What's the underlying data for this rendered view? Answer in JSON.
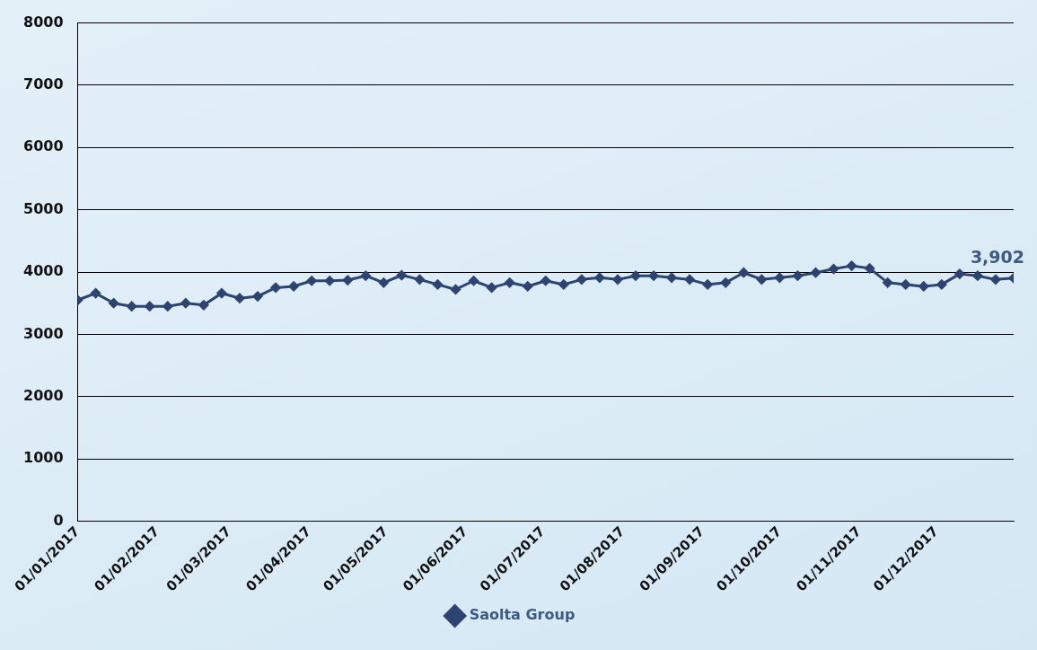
{
  "chart_data": {
    "type": "line",
    "x": [
      "2017-01-01",
      "2017-01-08",
      "2017-01-15",
      "2017-01-22",
      "2017-01-29",
      "2017-02-05",
      "2017-02-12",
      "2017-02-19",
      "2017-02-26",
      "2017-03-05",
      "2017-03-12",
      "2017-03-19",
      "2017-03-26",
      "2017-04-02",
      "2017-04-09",
      "2017-04-16",
      "2017-04-23",
      "2017-04-30",
      "2017-05-07",
      "2017-05-14",
      "2017-05-21",
      "2017-05-28",
      "2017-06-04",
      "2017-06-11",
      "2017-06-18",
      "2017-06-25",
      "2017-07-02",
      "2017-07-09",
      "2017-07-16",
      "2017-07-23",
      "2017-07-30",
      "2017-08-06",
      "2017-08-13",
      "2017-08-20",
      "2017-08-27",
      "2017-09-03",
      "2017-09-10",
      "2017-09-17",
      "2017-09-24",
      "2017-10-01",
      "2017-10-08",
      "2017-10-15",
      "2017-10-22",
      "2017-10-29",
      "2017-11-05",
      "2017-11-12",
      "2017-11-19",
      "2017-11-26",
      "2017-12-03",
      "2017-12-10",
      "2017-12-17",
      "2017-12-24",
      "2017-12-31"
    ],
    "series": [
      {
        "name": "Saolta Group",
        "color": "#2e4470",
        "values": [
          3550,
          3660,
          3500,
          3450,
          3450,
          3450,
          3500,
          3470,
          3660,
          3580,
          3610,
          3750,
          3770,
          3860,
          3860,
          3870,
          3940,
          3830,
          3950,
          3880,
          3800,
          3720,
          3860,
          3750,
          3830,
          3770,
          3860,
          3800,
          3880,
          3910,
          3880,
          3940,
          3940,
          3910,
          3880,
          3800,
          3830,
          3990,
          3880,
          3910,
          3940,
          3990,
          4050,
          4100,
          4060,
          3830,
          3800,
          3770,
          3800,
          3970,
          3940,
          3880,
          3902
        ],
        "value_labels": [
          null,
          null,
          null,
          null,
          null,
          null,
          null,
          null,
          null,
          null,
          null,
          null,
          null,
          null,
          null,
          null,
          null,
          null,
          null,
          null,
          null,
          null,
          null,
          null,
          null,
          null,
          null,
          null,
          null,
          null,
          null,
          null,
          null,
          null,
          null,
          null,
          null,
          null,
          null,
          null,
          null,
          null,
          null,
          null,
          null,
          null,
          null,
          null,
          null,
          null,
          null,
          null,
          "3,902"
        ]
      }
    ],
    "xlim": [
      "2017-01-01",
      "2017-12-31"
    ],
    "xticks": [
      {
        "value": "2017-01-01",
        "label": "01/01/2017"
      },
      {
        "value": "2017-02-01",
        "label": "01/02/2017"
      },
      {
        "value": "2017-03-01",
        "label": "01/03/2017"
      },
      {
        "value": "2017-04-01",
        "label": "01/04/2017"
      },
      {
        "value": "2017-05-01",
        "label": "01/05/2017"
      },
      {
        "value": "2017-06-01",
        "label": "01/06/2017"
      },
      {
        "value": "2017-07-01",
        "label": "01/07/2017"
      },
      {
        "value": "2017-08-01",
        "label": "01/08/2017"
      },
      {
        "value": "2017-09-01",
        "label": "01/09/2017"
      },
      {
        "value": "2017-10-01",
        "label": "01/10/2017"
      },
      {
        "value": "2017-11-01",
        "label": "01/11/2017"
      },
      {
        "value": "2017-12-01",
        "label": "01/12/2017"
      }
    ],
    "ylim": [
      0,
      8000
    ],
    "yticks": [
      0,
      1000,
      2000,
      3000,
      4000,
      5000,
      6000,
      7000,
      8000
    ],
    "grid": "y",
    "legend": "bottom",
    "marker": "diamond",
    "line_style": "solid"
  }
}
